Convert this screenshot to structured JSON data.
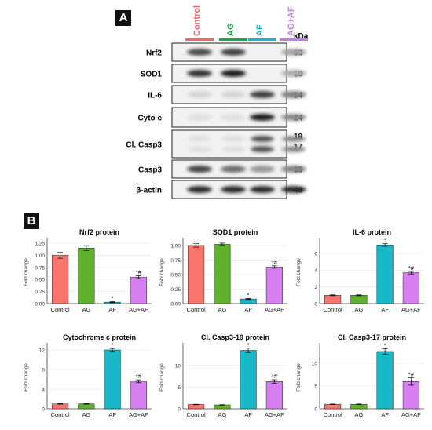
{
  "panel_a": {
    "label": "A",
    "lane_headers": [
      "Control",
      "AG",
      "AF",
      "AG+AF"
    ],
    "lane_colors": [
      "#f06a6a",
      "#1aa64a",
      "#17b8c8",
      "#c77be5"
    ],
    "kda_label": "kDa",
    "rows": [
      {
        "name": "Nrf2",
        "kda": [
          "60"
        ],
        "intensity": [
          0.75,
          0.8,
          0.0,
          0.35
        ]
      },
      {
        "name": "SOD1",
        "kda": [
          "18"
        ],
        "intensity": [
          0.85,
          0.95,
          0.0,
          0.3
        ]
      },
      {
        "name": "IL-6",
        "kda": [
          "14"
        ],
        "intensity": [
          0.1,
          0.1,
          0.8,
          0.5
        ]
      },
      {
        "name": "Cyto c",
        "kda": [
          "24"
        ],
        "intensity": [
          0.05,
          0.05,
          0.95,
          0.45
        ]
      },
      {
        "name": "Cl. Casp3",
        "kda": [
          "19",
          "17"
        ],
        "intensity": [
          0.05,
          0.05,
          0.7,
          0.45
        ]
      },
      {
        "name": "Casp3",
        "kda": [
          "35"
        ],
        "intensity": [
          0.8,
          0.6,
          0.4,
          0.5
        ]
      },
      {
        "name": "β-actin",
        "kda": [
          "48"
        ],
        "intensity": [
          0.9,
          0.9,
          0.9,
          0.9
        ]
      }
    ]
  },
  "panel_b": {
    "label": "B"
  },
  "chart_data": [
    {
      "type": "bar",
      "title": "Nrf2 protein",
      "ylabel": "Fold change",
      "categories": [
        "Control",
        "AG",
        "AF",
        "AG+AF"
      ],
      "values": [
        1.0,
        1.15,
        0.03,
        0.55
      ],
      "errors": [
        0.06,
        0.05,
        0.01,
        0.03
      ],
      "ylim": [
        0,
        1.3
      ],
      "yticks": [
        "0.00",
        "0.25",
        "0.50",
        "0.75",
        "1.00",
        "1.25"
      ],
      "annotations": [
        "",
        "",
        "*",
        "*#"
      ],
      "colors": [
        "#f8766d",
        "#5fb12e",
        "#17b8c8",
        "#d67ff0"
      ]
    },
    {
      "type": "bar",
      "title": "SOD1 protein",
      "ylabel": "Fold change",
      "categories": [
        "Control",
        "AG",
        "AF",
        "AG+AF"
      ],
      "values": [
        1.0,
        1.02,
        0.08,
        0.63
      ],
      "errors": [
        0.03,
        0.02,
        0.01,
        0.02
      ],
      "ylim": [
        0,
        1.08
      ],
      "yticks": [
        "0.00",
        "0.25",
        "0.50",
        "0.75",
        "1.00"
      ],
      "annotations": [
        "",
        "",
        "*",
        "*#"
      ],
      "colors": [
        "#f8766d",
        "#5fb12e",
        "#17b8c8",
        "#d67ff0"
      ]
    },
    {
      "type": "bar",
      "title": "IL-6 protein",
      "ylabel": "Fold change",
      "categories": [
        "Control",
        "AG",
        "AF",
        "AG+AF"
      ],
      "values": [
        1.0,
        1.0,
        7.0,
        3.7
      ],
      "errors": [
        0.05,
        0.05,
        0.15,
        0.15
      ],
      "ylim": [
        0,
        7.5
      ],
      "yticks": [
        "0",
        "2",
        "4",
        "6"
      ],
      "annotations": [
        "",
        "",
        "*",
        "*#"
      ],
      "colors": [
        "#f8766d",
        "#5fb12e",
        "#17b8c8",
        "#d67ff0"
      ]
    },
    {
      "type": "bar",
      "title": "Cytochrome c protein",
      "ylabel": "Fold change",
      "categories": [
        "Control",
        "AG",
        "AF",
        "AG+AF"
      ],
      "values": [
        1.0,
        1.0,
        12.0,
        5.6
      ],
      "errors": [
        0.05,
        0.05,
        0.3,
        0.3
      ],
      "ylim": [
        0,
        12.8
      ],
      "yticks": [
        "0",
        "4",
        "8",
        "12"
      ],
      "annotations": [
        "",
        "",
        "*",
        "*#"
      ],
      "colors": [
        "#f8766d",
        "#5fb12e",
        "#17b8c8",
        "#d67ff0"
      ]
    },
    {
      "type": "bar",
      "title": "Cl. Casp3-19 protein",
      "ylabel": "Fold change",
      "categories": [
        "Control",
        "AG",
        "AF",
        "AG+AF"
      ],
      "values": [
        1.0,
        0.9,
        13.5,
        6.3
      ],
      "errors": [
        0.05,
        0.05,
        0.5,
        0.4
      ],
      "ylim": [
        0,
        14.5
      ],
      "yticks": [
        "0",
        "5",
        "10"
      ],
      "annotations": [
        "",
        "",
        "*",
        "*#"
      ],
      "colors": [
        "#f8766d",
        "#5fb12e",
        "#17b8c8",
        "#d67ff0"
      ]
    },
    {
      "type": "bar",
      "title": "Cl. Casp3-17 protein",
      "ylabel": "Fold change",
      "categories": [
        "Control",
        "AG",
        "AF",
        "AG+AF"
      ],
      "values": [
        1.0,
        1.0,
        12.6,
        6.0
      ],
      "errors": [
        0.05,
        0.05,
        0.6,
        0.8
      ],
      "ylim": [
        0,
        13.8
      ],
      "yticks": [
        "0",
        "5",
        "10"
      ],
      "annotations": [
        "",
        "",
        "*",
        "*#"
      ],
      "colors": [
        "#f8766d",
        "#5fb12e",
        "#17b8c8",
        "#d67ff0"
      ]
    }
  ]
}
